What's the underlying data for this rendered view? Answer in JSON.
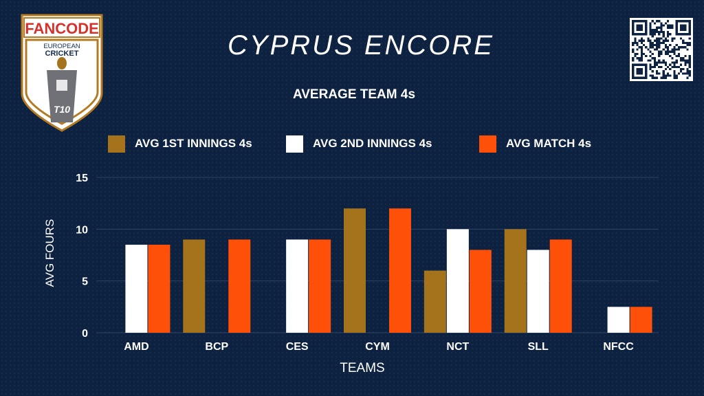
{
  "logo": {
    "brand": "FANCODE",
    "line1": "EUROPEAN",
    "line2": "CRICKET",
    "badge": "T10"
  },
  "title": "CYPRUS ENCORE",
  "colors": {
    "background": "#0d2141",
    "s1": "#a5731b",
    "s2": "#ffffff",
    "s3": "#fe5008",
    "grid": "#2f4566"
  },
  "chart_data": {
    "type": "bar",
    "title": "AVERAGE TEAM 4s",
    "xlabel": "TEAMS",
    "ylabel": "AVG FOURS",
    "categories": [
      "AMD",
      "BCP",
      "CES",
      "CYM",
      "NCT",
      "SLL",
      "NFCC"
    ],
    "series": [
      {
        "name": "AVG 1ST INNINGS 4s",
        "color": "#a5731b",
        "values": [
          0,
          9,
          0,
          12,
          6,
          10,
          0
        ]
      },
      {
        "name": "AVG 2ND INNINGS 4s",
        "color": "#ffffff",
        "values": [
          8.5,
          0,
          9,
          0,
          10,
          8,
          2.5
        ]
      },
      {
        "name": "AVG MATCH 4s",
        "color": "#fe5008",
        "values": [
          8.5,
          9,
          9,
          12,
          8,
          9,
          2.5
        ]
      }
    ],
    "ylim": [
      0,
      15
    ],
    "yticks": [
      0,
      5,
      10,
      15
    ],
    "grid": true,
    "legend_position": "top"
  }
}
